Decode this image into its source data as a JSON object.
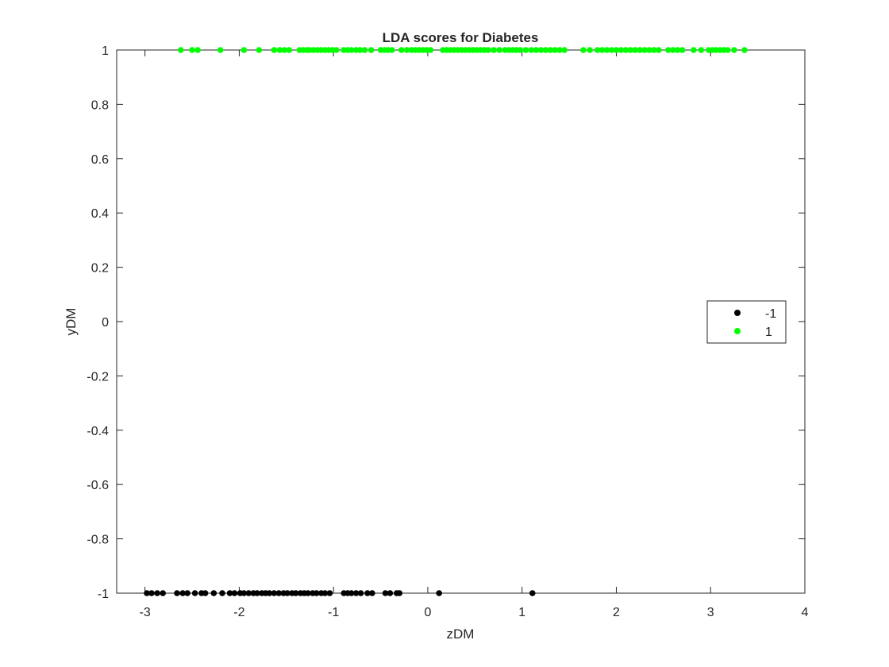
{
  "chart_data": {
    "type": "scatter",
    "title": "LDA scores for Diabetes",
    "xlabel": "zDM",
    "ylabel": "yDM",
    "xlim": [
      -3.3,
      4
    ],
    "ylim": [
      -1,
      1
    ],
    "xticks": [
      -3,
      -2,
      -1,
      0,
      1,
      2,
      3,
      4
    ],
    "xtick_labels": [
      "-3",
      "-2",
      "-1",
      "0",
      "1",
      "2",
      "3",
      "4"
    ],
    "yticks": [
      -1,
      -0.8,
      -0.6,
      -0.4,
      -0.2,
      0,
      0.2,
      0.4,
      0.6,
      0.8,
      1
    ],
    "ytick_labels": [
      "-1",
      "-0.8",
      "-0.6",
      "-0.4",
      "-0.2",
      "0",
      "0.2",
      "0.4",
      "0.6",
      "0.8",
      "1"
    ],
    "grid": false,
    "legend_position": "right",
    "series": [
      {
        "name": "-1",
        "color": "#000000",
        "y": -1,
        "x": [
          -2.98,
          -2.93,
          -2.87,
          -2.81,
          -2.66,
          -2.6,
          -2.55,
          -2.47,
          -2.4,
          -2.36,
          -2.27,
          -2.18,
          -2.1,
          -2.05,
          -1.99,
          -1.95,
          -1.9,
          -1.85,
          -1.81,
          -1.76,
          -1.72,
          -1.68,
          -1.63,
          -1.58,
          -1.53,
          -1.49,
          -1.44,
          -1.4,
          -1.35,
          -1.31,
          -1.27,
          -1.22,
          -1.18,
          -1.13,
          -1.09,
          -1.04,
          -0.89,
          -0.85,
          -0.81,
          -0.76,
          -0.71,
          -0.64,
          -0.59,
          -0.45,
          -0.4,
          -0.33,
          -0.3,
          0.12,
          1.11
        ]
      },
      {
        "name": "1",
        "color": "#00ff00",
        "y": 1,
        "x": [
          -2.62,
          -2.5,
          -2.44,
          -2.2,
          -1.95,
          -1.79,
          -1.63,
          -1.57,
          -1.52,
          -1.47,
          -1.36,
          -1.32,
          -1.28,
          -1.25,
          -1.21,
          -1.17,
          -1.13,
          -1.09,
          -1.05,
          -1.01,
          -0.97,
          -0.89,
          -0.85,
          -0.81,
          -0.76,
          -0.72,
          -0.67,
          -0.6,
          -0.5,
          -0.46,
          -0.42,
          -0.38,
          -0.28,
          -0.22,
          -0.17,
          -0.13,
          -0.09,
          -0.05,
          -0.01,
          0.03,
          0.16,
          0.2,
          0.24,
          0.28,
          0.32,
          0.36,
          0.4,
          0.44,
          0.48,
          0.52,
          0.56,
          0.6,
          0.64,
          0.7,
          0.76,
          0.82,
          0.86,
          0.9,
          0.94,
          0.98,
          1.04,
          1.1,
          1.15,
          1.2,
          1.25,
          1.3,
          1.35,
          1.4,
          1.45,
          1.65,
          1.72,
          1.8,
          1.85,
          1.9,
          1.95,
          2.0,
          2.05,
          2.1,
          2.15,
          2.2,
          2.25,
          2.3,
          2.35,
          2.4,
          2.45,
          2.55,
          2.6,
          2.65,
          2.7,
          2.82,
          2.9,
          2.98,
          3.02,
          3.06,
          3.1,
          3.14,
          3.18,
          3.25,
          3.36
        ]
      }
    ]
  }
}
